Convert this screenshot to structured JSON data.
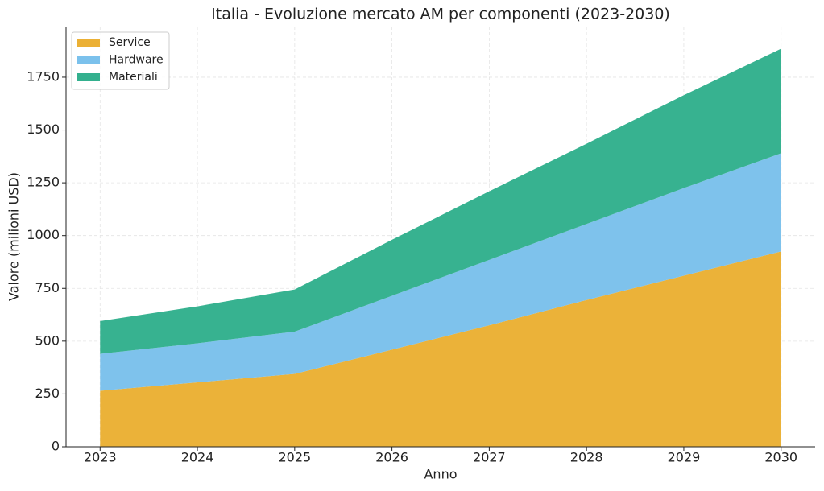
{
  "chart_data": {
    "type": "stacked_area",
    "title": "Italia - Evoluzione mercato AM per componenti (2023-2030)",
    "x_label": "Anno",
    "y_label": "Valore (milioni USD)",
    "x": [
      2023,
      2024,
      2025,
      2026,
      2027,
      2028,
      2029,
      2030
    ],
    "series": [
      {
        "name": "Service",
        "color": "#ebb035",
        "values": [
          265,
          305,
          345,
          460,
          575,
          695,
          810,
          925
        ]
      },
      {
        "name": "Hardware",
        "color": "#7bc1ec",
        "values": [
          175,
          185,
          200,
          255,
          310,
          360,
          415,
          465
        ]
      },
      {
        "name": "Materiali",
        "color": "#33b08e",
        "values": [
          155,
          175,
          200,
          265,
          325,
          380,
          440,
          495
        ]
      }
    ],
    "xlim": [
      2022.65,
      2030.35
    ],
    "xticks": [
      2023,
      2024,
      2025,
      2026,
      2027,
      2028,
      2029,
      2030
    ],
    "ylim": [
      0,
      1990
    ],
    "yticks": [
      0,
      250,
      500,
      750,
      1000,
      1250,
      1500,
      1750
    ],
    "grid": true,
    "legend_position": "upper-left"
  }
}
